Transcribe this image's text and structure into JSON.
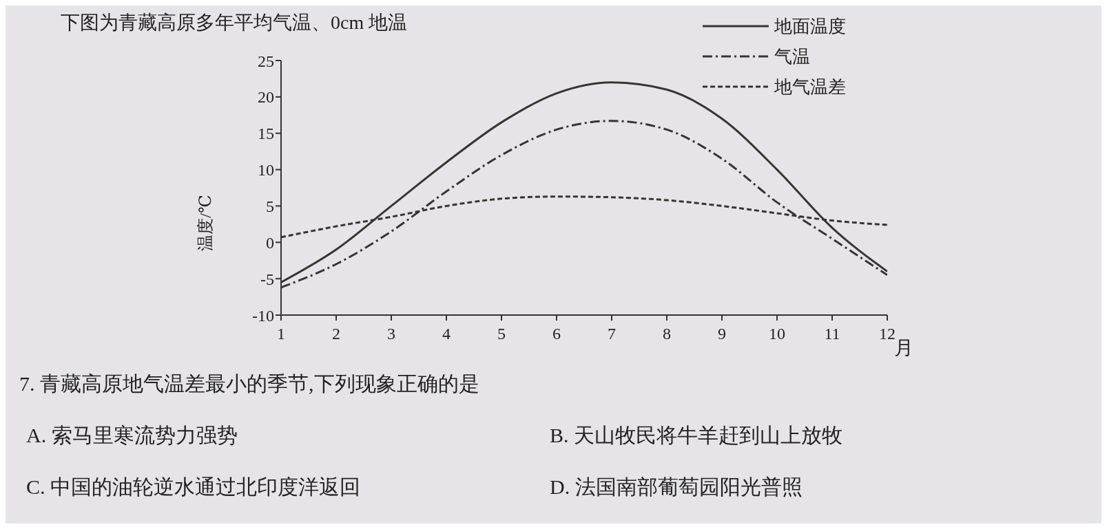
{
  "chart_data": {
    "type": "line",
    "xlabel": "月",
    "ylabel": "温度/℃",
    "x": [
      1,
      2,
      3,
      4,
      5,
      6,
      7,
      8,
      9,
      10,
      11,
      12
    ],
    "series": [
      {
        "name": "地面温度",
        "color": "#3a3333",
        "line_style": "solid",
        "values": [
          -5.5,
          -1,
          5,
          11,
          16.5,
          20.5,
          22,
          21,
          17,
          10,
          2,
          -4
        ]
      },
      {
        "name": "气温",
        "color": "#3a3333",
        "line_style": "dashdot",
        "values": [
          -6.2,
          -3,
          1.5,
          7,
          12,
          15.5,
          16.7,
          15.5,
          11.5,
          5.5,
          0.5,
          -4.5
        ]
      },
      {
        "name": "地气温差",
        "color": "#3a3333",
        "line_style": "dashed",
        "values": [
          0.7,
          2.2,
          3.5,
          5,
          6,
          6.3,
          6.2,
          5.8,
          5,
          4,
          3,
          2.4
        ]
      }
    ],
    "xlim": [
      1,
      12
    ],
    "xticks": [
      1,
      2,
      3,
      4,
      5,
      6,
      7,
      8,
      9,
      10,
      11,
      12
    ],
    "ylim": [
      -10,
      25
    ],
    "yticks": [
      -10,
      -5,
      0,
      5,
      10,
      15,
      20,
      25
    ],
    "grid": false,
    "legend": "top right",
    "marker": "none",
    "annotations": [
      "下图为青藏高原多年平均气温、0cm 地温",
      "7. 青藏高原地气温差最小的季节,下列现象正确的是",
      "A. 索马里寒流势力强势",
      "B. 天山牧民将牛羊赶到山上放牧",
      "C. 中国的油轮逆水通过北印度洋返回",
      "D. 法国南部葡萄园阳光普照"
    ]
  }
}
